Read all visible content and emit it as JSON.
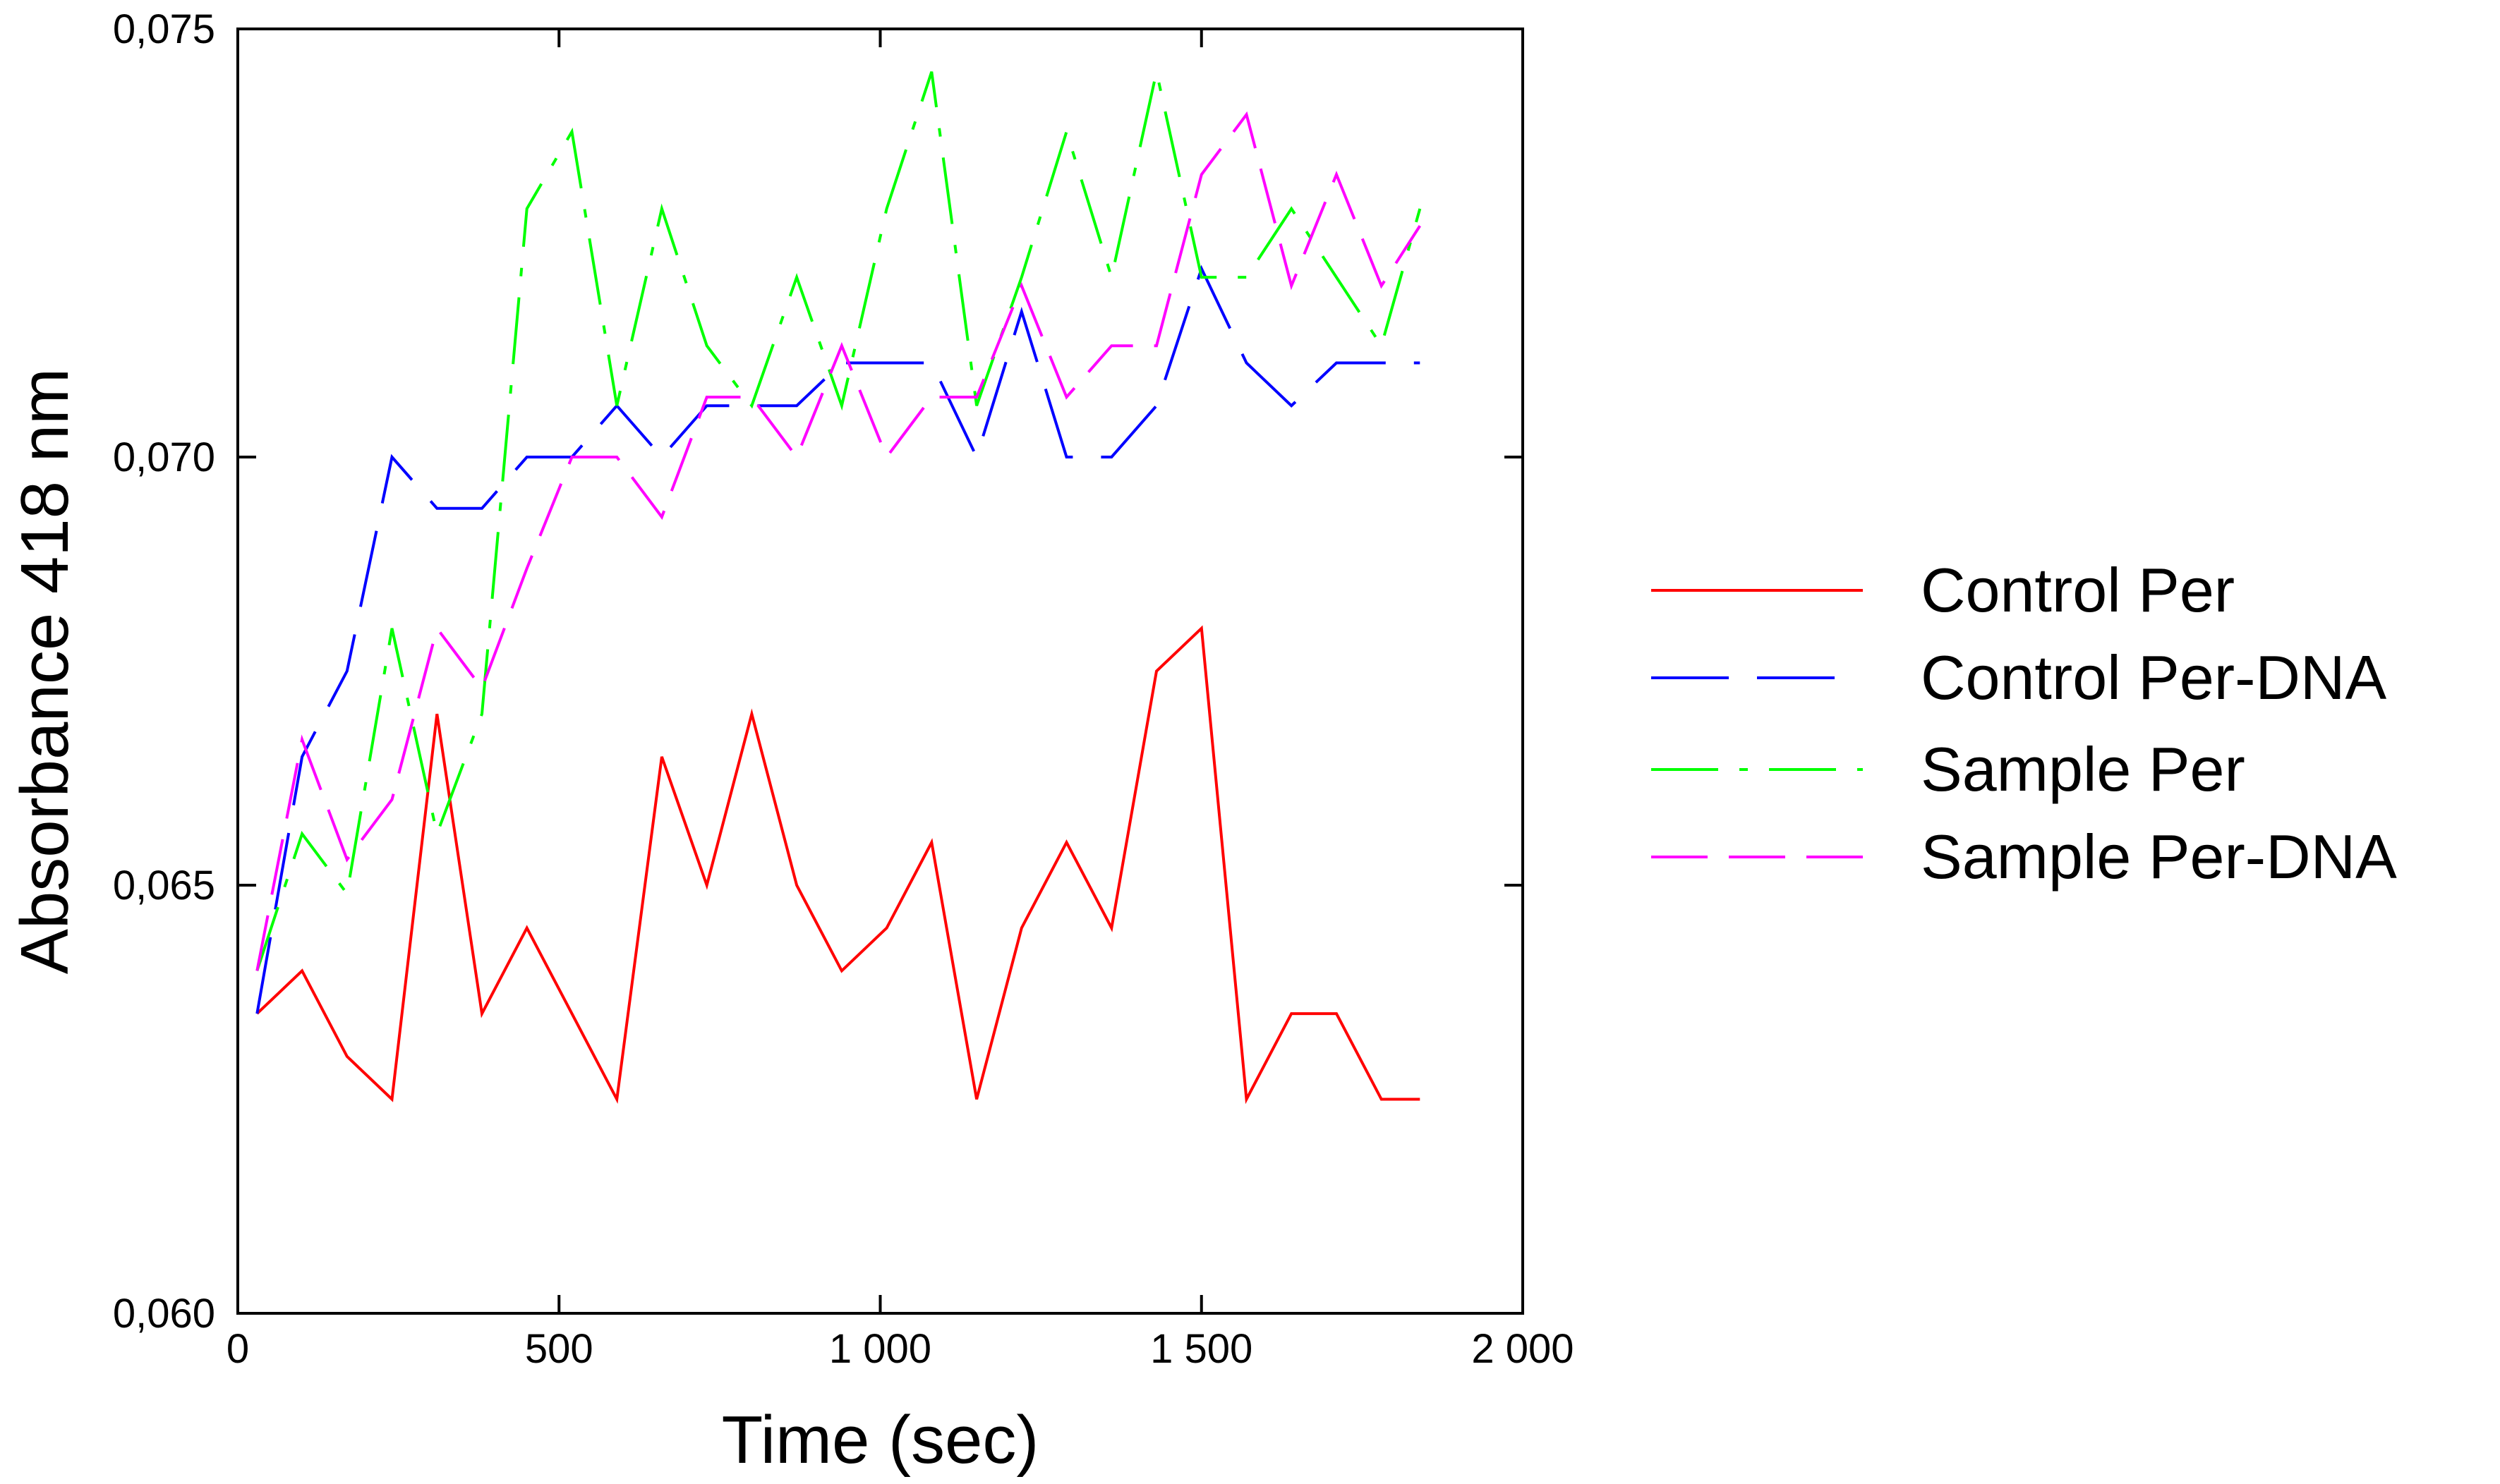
{
  "chart_data": {
    "type": "line",
    "title": "",
    "xlabel": "Time (sec)",
    "ylabel": "Absorbance 418 nm",
    "xlim": [
      0,
      2000
    ],
    "ylim": [
      0.06,
      0.075
    ],
    "x_ticks": [
      0,
      500,
      1000,
      1500,
      2000
    ],
    "x_tick_labels": [
      "0",
      "500",
      "1 000",
      "1 500",
      "2 000"
    ],
    "y_ticks": [
      0.06,
      0.065,
      0.07,
      0.075
    ],
    "y_tick_labels": [
      "0,060",
      "0,065",
      "0,070",
      "0,075"
    ],
    "grid": false,
    "legend_position": "right",
    "x": [
      30,
      100,
      170,
      240,
      310,
      380,
      450,
      520,
      590,
      660,
      730,
      800,
      870,
      940,
      1010,
      1080,
      1150,
      1220,
      1290,
      1360,
      1430,
      1500,
      1570,
      1640,
      1710,
      1780,
      1840
    ],
    "series": [
      {
        "name": "Control Per",
        "color": "#ff0000",
        "dash": "solid",
        "values": [
          0.0635,
          0.064,
          0.063,
          0.0625,
          0.067,
          0.0635,
          0.0645,
          0.0635,
          0.0625,
          0.0665,
          0.065,
          0.067,
          0.065,
          0.064,
          0.0645,
          0.0655,
          0.0625,
          0.0645,
          0.0655,
          0.0645,
          0.0675,
          0.068,
          0.0625,
          0.0635,
          0.0635,
          0.0625,
          0.0625
        ]
      },
      {
        "name": "Control Per-DNA",
        "color": "#0000ff",
        "dash": "long-dash",
        "values": [
          0.0635,
          0.0665,
          0.0675,
          0.07,
          0.0694,
          0.0694,
          0.07,
          0.07,
          0.0706,
          0.07,
          0.0706,
          0.0706,
          0.0706,
          0.0711,
          0.0711,
          0.0711,
          0.07,
          0.0717,
          0.07,
          0.07,
          0.0706,
          0.0722,
          0.0711,
          0.0706,
          0.0711,
          0.0711,
          0.0711
        ]
      },
      {
        "name": "Sample Per",
        "color": "#00ff00",
        "dash": "dash-dot",
        "values": [
          0.064,
          0.0656,
          0.0649,
          0.068,
          0.0656,
          0.067,
          0.0729,
          0.0738,
          0.0706,
          0.0729,
          0.0713,
          0.0706,
          0.0721,
          0.0706,
          0.0729,
          0.0745,
          0.0706,
          0.0721,
          0.0738,
          0.0721,
          0.0745,
          0.0721,
          0.0721,
          0.0729,
          0.0721,
          0.0713,
          0.0729
        ]
      },
      {
        "name": "Sample Per-DNA",
        "color": "#ff00ff",
        "dash": "medium-dash",
        "values": [
          0.064,
          0.0667,
          0.0653,
          0.066,
          0.068,
          0.0673,
          0.0687,
          0.07,
          0.07,
          0.0693,
          0.0707,
          0.0707,
          0.07,
          0.0713,
          0.07,
          0.0707,
          0.0707,
          0.072,
          0.0707,
          0.0713,
          0.0713,
          0.0733,
          0.074,
          0.072,
          0.0733,
          0.072,
          0.0727
        ]
      }
    ]
  }
}
